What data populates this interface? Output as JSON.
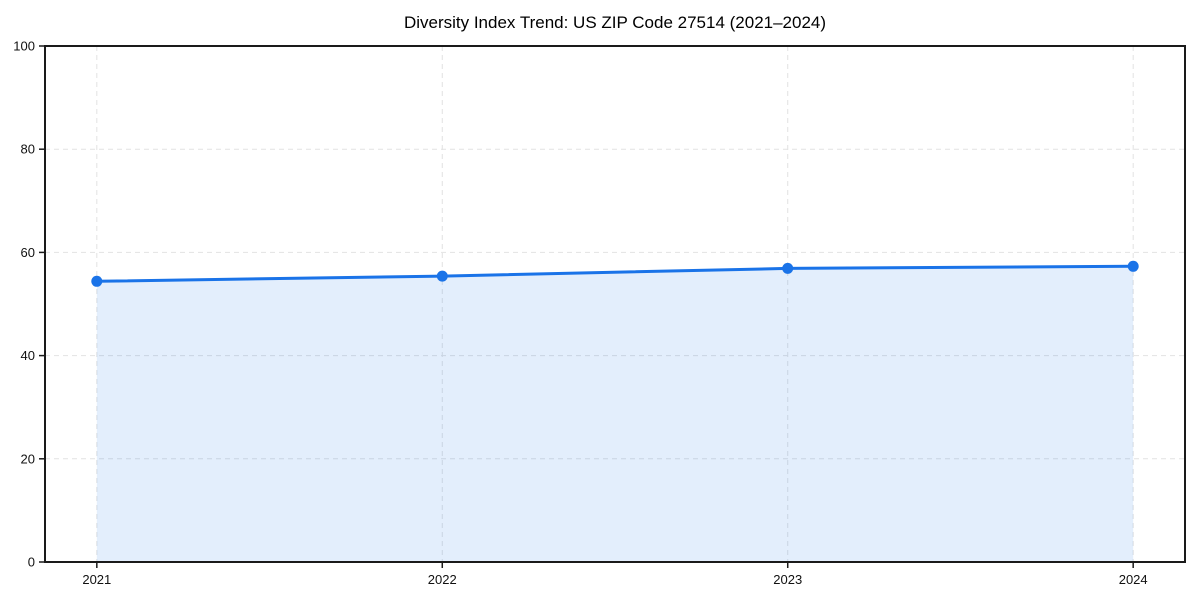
{
  "chart_data": {
    "type": "line",
    "title": "Diversity Index Trend: US ZIP Code 27514 (2021–2024)",
    "x": [
      2021,
      2022,
      2023,
      2024
    ],
    "xtick_labels": [
      "2021",
      "2022",
      "2023",
      "2024"
    ],
    "series": [
      {
        "name": "Diversity Index",
        "values": [
          54.4,
          55.4,
          56.9,
          57.3
        ]
      }
    ],
    "yticks": [
      0,
      20,
      40,
      60,
      80,
      100
    ],
    "xlim": [
      2020.85,
      2024.15
    ],
    "ylim": [
      0,
      100
    ],
    "xlabel": "",
    "ylabel": "",
    "grid": true,
    "grid_style": "dashed",
    "legend": false,
    "marker": "circle",
    "colors": {
      "line": "#1a73e8",
      "marker": "#1a73e8",
      "fill": "#1a73e8",
      "fill_opacity": 0.12,
      "grid": "#e2e2e2",
      "axis": "#1a1a1a",
      "tick_text": "#111111"
    }
  }
}
